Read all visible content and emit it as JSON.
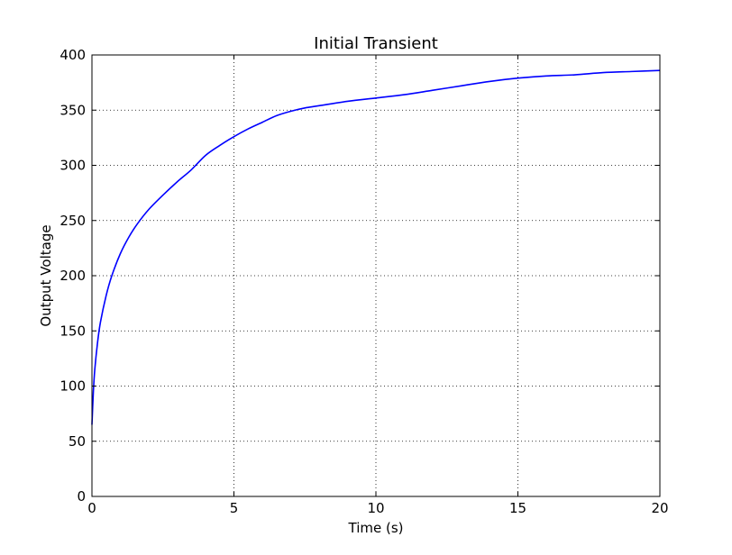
{
  "chart_data": {
    "type": "line",
    "title": "Initial Transient",
    "xlabel": "Time (s)",
    "ylabel": "Output Voltage",
    "xlim": [
      0,
      20
    ],
    "ylim": [
      0,
      400
    ],
    "xticks": [
      0,
      5,
      10,
      15,
      20
    ],
    "yticks": [
      0,
      50,
      100,
      150,
      200,
      250,
      300,
      350,
      400
    ],
    "grid": true,
    "legend": "none",
    "series": [
      {
        "color": "#0000ff",
        "x": [
          0,
          0.05,
          0.1,
          0.2,
          0.3,
          0.5,
          0.7,
          1.0,
          1.3,
          1.6,
          2.0,
          2.5,
          3.0,
          3.5,
          4.0,
          4.5,
          5.0,
          5.5,
          6.0,
          6.5,
          7.0,
          7.5,
          8.0,
          9.0,
          10.0,
          11.0,
          12.0,
          13.0,
          14.0,
          15.0,
          16.0,
          17.0,
          18.0,
          19.0,
          20.0
        ],
        "y": [
          65,
          95,
          115,
          140,
          158,
          182,
          200,
          220,
          235,
          247,
          260,
          273,
          285,
          296,
          309,
          318,
          326,
          333,
          339,
          345,
          349,
          352,
          354,
          358,
          361,
          364,
          368,
          372,
          376,
          379,
          381,
          382,
          384,
          385,
          386
        ]
      }
    ]
  }
}
